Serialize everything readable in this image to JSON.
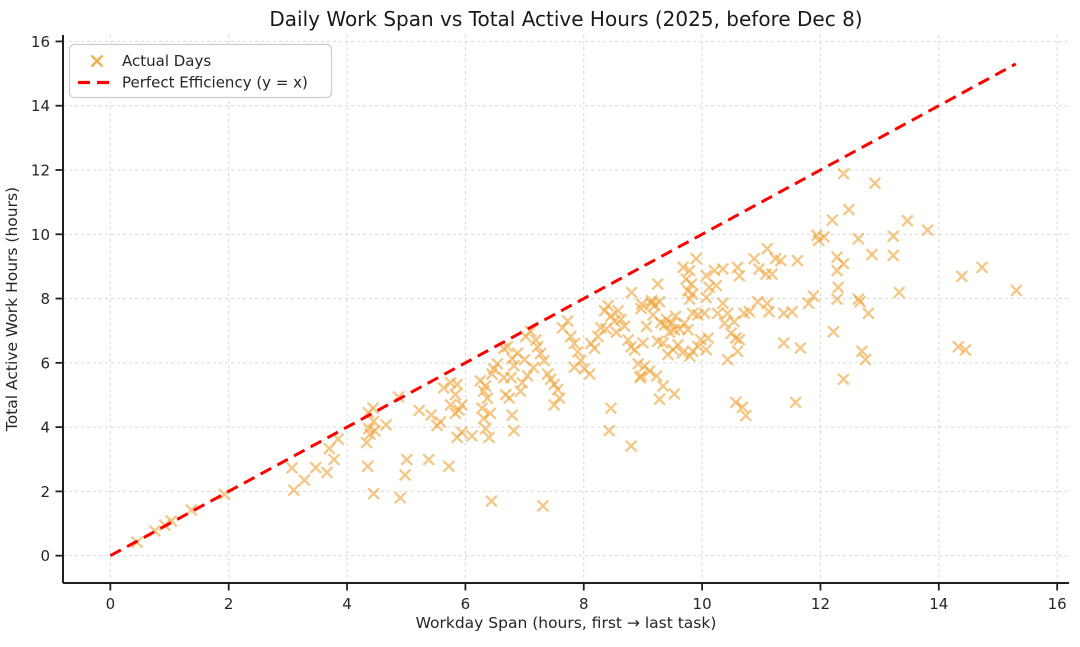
{
  "chart_data": {
    "type": "scatter",
    "title": "Daily Work Span vs Total Active Hours (2025, before Dec 8)",
    "xlabel": "Workday Span (hours, first → last task)",
    "ylabel": "Total Active Work Hours (hours)",
    "xlim": [
      -0.8,
      16.2
    ],
    "ylim": [
      -0.85,
      16.2
    ],
    "xticks": [
      0,
      2,
      4,
      6,
      8,
      10,
      12,
      14,
      16
    ],
    "yticks": [
      0,
      2,
      4,
      6,
      8,
      10,
      12,
      14,
      16
    ],
    "grid": true,
    "grid_color": "#d9d9d9",
    "legend": {
      "position": "upper-left",
      "entries": [
        {
          "label": "Actual Days",
          "marker": "x",
          "color": "#eea236"
        },
        {
          "label": "Perfect Efficiency (y = x)",
          "marker": "dashed-line",
          "color": "#ff0000"
        }
      ]
    },
    "series": [
      {
        "name": "Actual Days",
        "type": "scatter",
        "marker": "x",
        "color": "#eea236",
        "opacity": 0.6,
        "points": [
          [
            0.45,
            0.42
          ],
          [
            0.75,
            0.77
          ],
          [
            0.92,
            0.95
          ],
          [
            1.03,
            1.08
          ],
          [
            1.37,
            1.42
          ],
          [
            1.93,
            1.91
          ],
          [
            3.07,
            2.73
          ],
          [
            3.1,
            2.04
          ],
          [
            3.28,
            2.35
          ],
          [
            3.47,
            2.74
          ],
          [
            3.66,
            2.59
          ],
          [
            3.7,
            3.33
          ],
          [
            3.78,
            2.99
          ],
          [
            3.85,
            3.63
          ],
          [
            4.36,
            4.45
          ],
          [
            4.44,
            4.59
          ],
          [
            4.45,
            4.18
          ],
          [
            4.37,
            3.95
          ],
          [
            4.47,
            3.88
          ],
          [
            4.33,
            3.52
          ],
          [
            4.39,
            3.78
          ],
          [
            4.66,
            4.07
          ],
          [
            4.35,
            2.78
          ],
          [
            4.45,
            1.93
          ],
          [
            4.87,
            4.94
          ],
          [
            4.9,
            1.8
          ],
          [
            4.98,
            2.51
          ],
          [
            5.01,
            2.99
          ],
          [
            5.38,
            2.99
          ],
          [
            5.72,
            2.78
          ],
          [
            5.22,
            4.52
          ],
          [
            5.42,
            4.38
          ],
          [
            5.52,
            4.05
          ],
          [
            5.58,
            4.16
          ],
          [
            5.63,
            5.22
          ],
          [
            5.75,
            5.38
          ],
          [
            5.86,
            5.33
          ],
          [
            5.83,
            5.01
          ],
          [
            5.89,
            4.53
          ],
          [
            5.75,
            4.69
          ],
          [
            5.94,
            4.69
          ],
          [
            5.83,
            4.43
          ],
          [
            5.86,
            3.68
          ],
          [
            5.94,
            3.84
          ],
          [
            6.11,
            3.73
          ],
          [
            6.25,
            5.44
          ],
          [
            6.31,
            5.12
          ],
          [
            6.34,
            5.28
          ],
          [
            6.37,
            4.9
          ],
          [
            6.28,
            4.59
          ],
          [
            6.42,
            4.43
          ],
          [
            6.31,
            4.27
          ],
          [
            6.34,
            3.95
          ],
          [
            6.4,
            3.68
          ],
          [
            6.48,
            5.81
          ],
          [
            6.45,
            5.65
          ],
          [
            6.54,
            5.97
          ],
          [
            6.44,
            1.7
          ],
          [
            6.65,
            6.45
          ],
          [
            6.71,
            6.5
          ],
          [
            6.79,
            6.13
          ],
          [
            6.82,
            5.91
          ],
          [
            6.77,
            5.54
          ],
          [
            6.65,
            5.54
          ],
          [
            6.68,
            5.01
          ],
          [
            6.74,
            4.9
          ],
          [
            6.79,
            4.37
          ],
          [
            6.82,
            3.89
          ],
          [
            6.88,
            6.3
          ],
          [
            6.93,
            5.12
          ],
          [
            6.96,
            5.38
          ],
          [
            7.02,
            6.82
          ],
          [
            7.05,
            5.6
          ],
          [
            7.1,
            6.98
          ],
          [
            7.0,
            6.1
          ],
          [
            7.15,
            5.85
          ],
          [
            7.19,
            6.71
          ],
          [
            7.22,
            6.5
          ],
          [
            7.27,
            6.29
          ],
          [
            7.33,
            6.07
          ],
          [
            7.39,
            5.65
          ],
          [
            7.44,
            5.49
          ],
          [
            7.31,
            1.55
          ],
          [
            7.5,
            5.33
          ],
          [
            7.56,
            5.17
          ],
          [
            7.59,
            4.9
          ],
          [
            7.5,
            4.69
          ],
          [
            7.64,
            7.09
          ],
          [
            7.73,
            7.3
          ],
          [
            7.78,
            6.82
          ],
          [
            7.84,
            6.6
          ],
          [
            7.9,
            6.34
          ],
          [
            7.95,
            6.07
          ],
          [
            7.84,
            5.86
          ],
          [
            8.01,
            5.81
          ],
          [
            8.1,
            5.65
          ],
          [
            8.12,
            6.6
          ],
          [
            8.18,
            6.45
          ],
          [
            8.24,
            6.82
          ],
          [
            8.29,
            7.09
          ],
          [
            8.35,
            7.62
          ],
          [
            8.41,
            7.78
          ],
          [
            8.46,
            7.46
          ],
          [
            8.52,
            7.3
          ],
          [
            8.58,
            7.62
          ],
          [
            8.63,
            7.35
          ],
          [
            8.69,
            7.14
          ],
          [
            8.75,
            6.71
          ],
          [
            8.8,
            6.5
          ],
          [
            8.86,
            6.4
          ],
          [
            8.92,
            5.97
          ],
          [
            8.95,
            5.54
          ],
          [
            8.46,
            4.59
          ],
          [
            8.43,
            3.89
          ],
          [
            8.8,
            3.41
          ],
          [
            8.38,
            7.05
          ],
          [
            8.55,
            6.95
          ],
          [
            8.81,
            8.19
          ],
          [
            8.98,
            7.82
          ],
          [
            8.97,
            7.69
          ],
          [
            8.97,
            5.59
          ],
          [
            9.14,
            7.85
          ],
          [
            9.28,
            7.9
          ],
          [
            9.2,
            7.79
          ],
          [
            9.17,
            7.49
          ],
          [
            9.37,
            7.18
          ],
          [
            9.48,
            7.23
          ],
          [
            9.53,
            7.03
          ],
          [
            9.7,
            7.23
          ],
          [
            9.76,
            7.03
          ],
          [
            9.84,
            7.54
          ],
          [
            9.93,
            7.49
          ],
          [
            9.45,
            6.95
          ],
          [
            9.55,
            7.45
          ],
          [
            9.62,
            7.05
          ],
          [
            9.4,
            7.35
          ],
          [
            9.3,
            7.25
          ],
          [
            9.06,
            7.13
          ],
          [
            9.0,
            6.62
          ],
          [
            9.25,
            6.67
          ],
          [
            9.34,
            6.62
          ],
          [
            9.42,
            6.26
          ],
          [
            9.51,
            6.41
          ],
          [
            9.59,
            6.56
          ],
          [
            9.67,
            6.31
          ],
          [
            9.79,
            6.21
          ],
          [
            9.84,
            6.36
          ],
          [
            9.93,
            6.51
          ],
          [
            9.98,
            6.72
          ],
          [
            9.03,
            5.9
          ],
          [
            9.11,
            5.74
          ],
          [
            9.23,
            5.59
          ],
          [
            9.34,
            5.28
          ],
          [
            9.53,
            5.03
          ],
          [
            9.28,
            4.87
          ],
          [
            9.15,
            7.93
          ],
          [
            9.25,
            8.45
          ],
          [
            9.68,
            8.97
          ],
          [
            9.73,
            8.6
          ],
          [
            9.79,
            8.87
          ],
          [
            9.82,
            8.45
          ],
          [
            9.76,
            8.24
          ],
          [
            9.84,
            8.14
          ],
          [
            9.79,
            7.98
          ],
          [
            9.9,
            9.24
          ],
          [
            10.04,
            7.54
          ],
          [
            10.1,
            6.77
          ],
          [
            10.07,
            6.41
          ],
          [
            10.26,
            7.54
          ],
          [
            10.35,
            7.85
          ],
          [
            10.38,
            7.23
          ],
          [
            10.43,
            7.54
          ],
          [
            10.49,
            6.92
          ],
          [
            10.54,
            7.28
          ],
          [
            10.57,
            6.77
          ],
          [
            10.63,
            6.72
          ],
          [
            10.71,
            7.54
          ],
          [
            10.8,
            7.59
          ],
          [
            10.6,
            6.36
          ],
          [
            10.43,
            6.1
          ],
          [
            10.94,
            7.9
          ],
          [
            10.57,
            4.77
          ],
          [
            10.68,
            4.62
          ],
          [
            10.74,
            4.36
          ],
          [
            10.07,
            8.03
          ],
          [
            10.07,
            8.71
          ],
          [
            10.12,
            8.35
          ],
          [
            10.24,
            8.4
          ],
          [
            10.21,
            8.87
          ],
          [
            10.35,
            8.92
          ],
          [
            10.6,
            8.97
          ],
          [
            10.63,
            8.71
          ],
          [
            10.88,
            9.24
          ],
          [
            10.96,
            8.92
          ],
          [
            11.1,
            7.85
          ],
          [
            11.13,
            7.59
          ],
          [
            11.38,
            7.54
          ],
          [
            11.52,
            7.59
          ],
          [
            11.8,
            7.85
          ],
          [
            11.38,
            6.62
          ],
          [
            11.66,
            6.46
          ],
          [
            11.58,
            4.77
          ],
          [
            11.1,
            9.55
          ],
          [
            11.24,
            9.24
          ],
          [
            11.33,
            9.18
          ],
          [
            11.61,
            9.18
          ],
          [
            11.08,
            8.76
          ],
          [
            11.18,
            8.76
          ],
          [
            11.88,
            8.08
          ],
          [
            11.94,
            9.97
          ],
          [
            12.06,
            9.92
          ],
          [
            11.97,
            9.81
          ],
          [
            12.22,
            6.97
          ],
          [
            12.67,
            7.9
          ],
          [
            12.81,
            7.54
          ],
          [
            12.7,
            6.36
          ],
          [
            12.76,
            6.1
          ],
          [
            12.39,
            5.49
          ],
          [
            12.39,
            11.88
          ],
          [
            12.92,
            11.59
          ],
          [
            12.48,
            10.77
          ],
          [
            12.2,
            10.44
          ],
          [
            12.64,
            9.86
          ],
          [
            12.87,
            9.37
          ],
          [
            12.28,
            9.29
          ],
          [
            12.39,
            9.08
          ],
          [
            12.28,
            8.87
          ],
          [
            12.3,
            8.35
          ],
          [
            12.28,
            7.98
          ],
          [
            12.64,
            7.98
          ],
          [
            13.47,
            10.42
          ],
          [
            13.23,
            9.94
          ],
          [
            13.23,
            9.34
          ],
          [
            13.33,
            8.19
          ],
          [
            13.81,
            10.13
          ],
          [
            14.39,
            8.69
          ],
          [
            14.73,
            8.97
          ],
          [
            15.31,
            8.25
          ],
          [
            14.33,
            6.5
          ],
          [
            14.45,
            6.4
          ]
        ]
      },
      {
        "name": "Perfect Efficiency (y = x)",
        "type": "line",
        "style": "dashed",
        "color": "#ff0000",
        "points": [
          [
            0,
            0
          ],
          [
            15.3,
            15.3
          ]
        ]
      }
    ]
  }
}
